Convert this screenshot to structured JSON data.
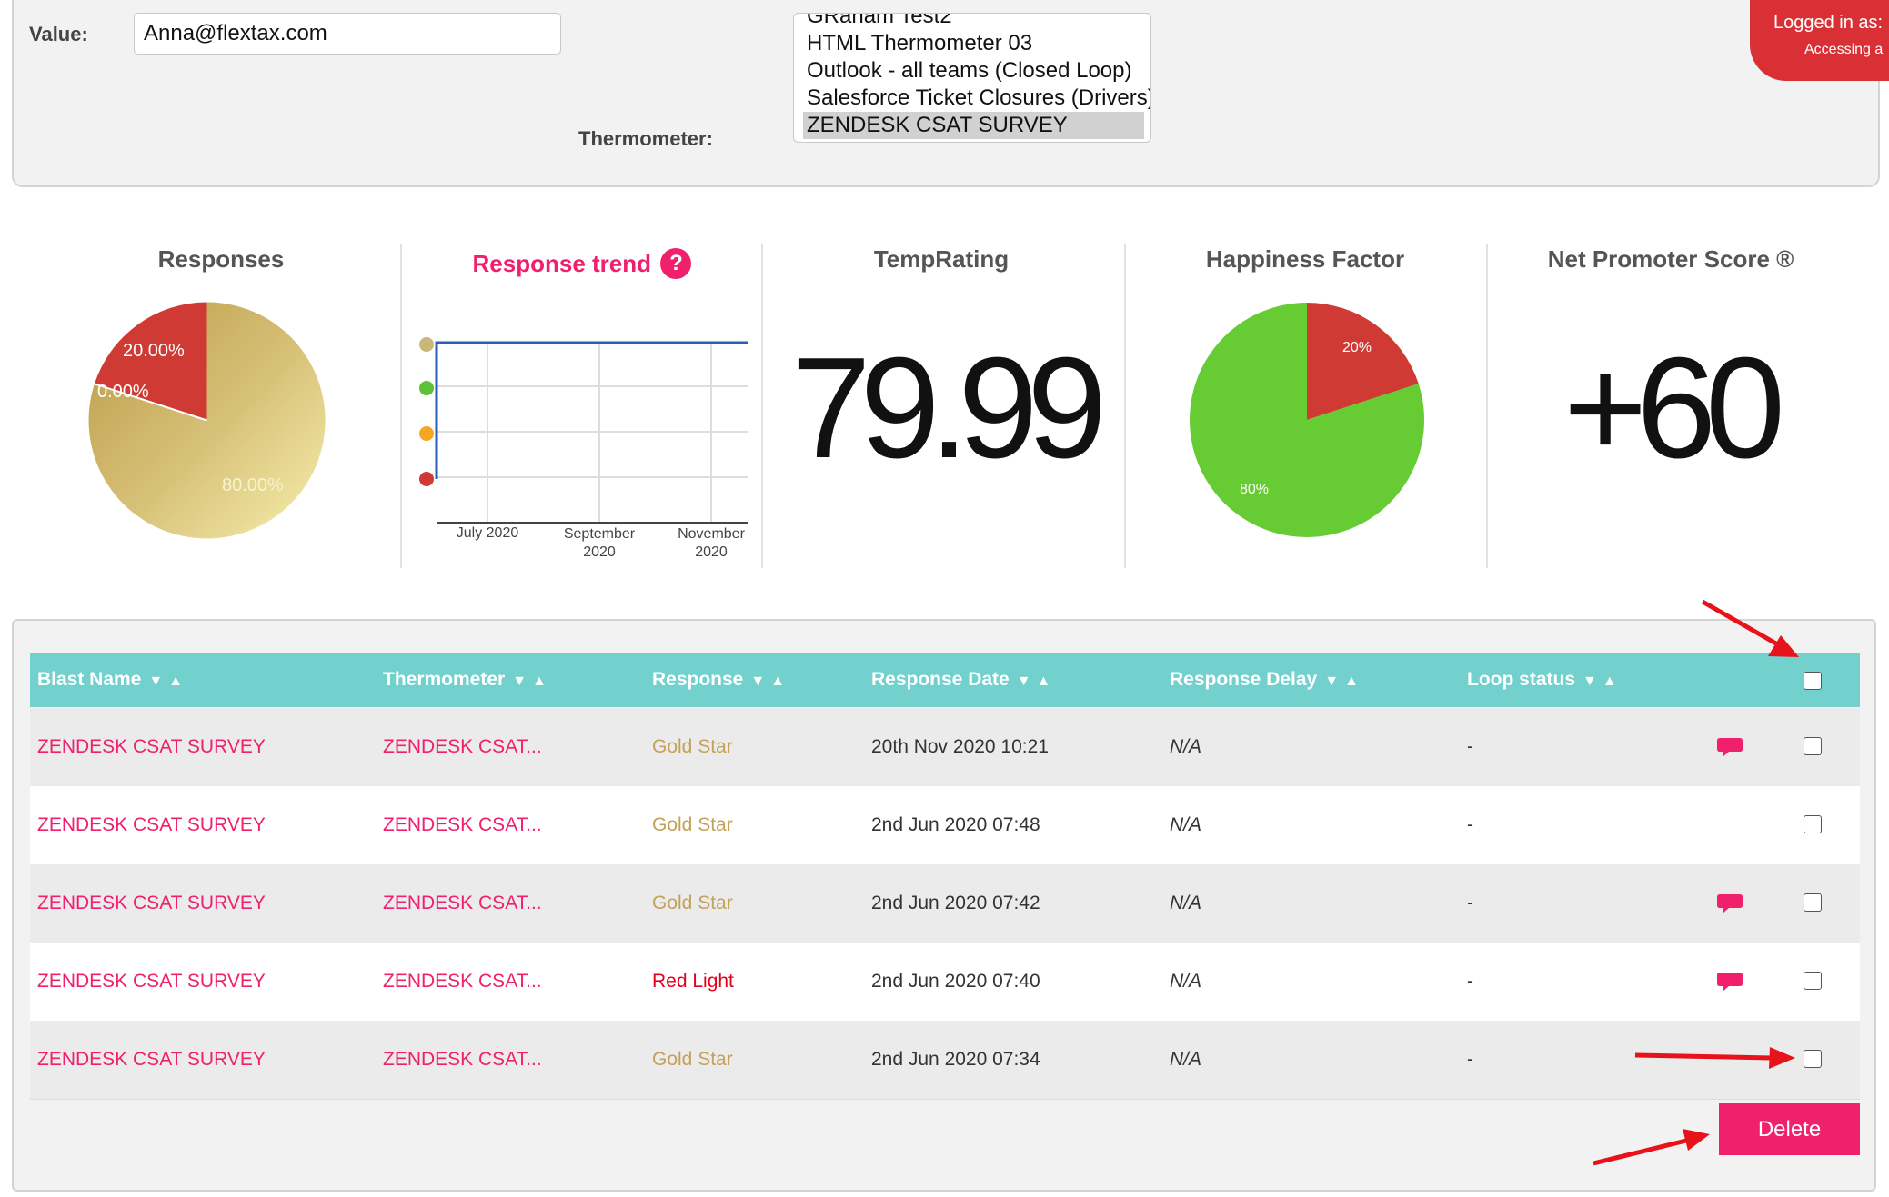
{
  "filters": {
    "value_label": "Value:",
    "value_input": "Anna@flextax.com",
    "thermometer_label": "Thermometer:",
    "thermometer_options": [
      {
        "label": "GRaham Test2",
        "selected": false
      },
      {
        "label": "HTML Thermometer 03",
        "selected": false
      },
      {
        "label": "Outlook - all teams (Closed Loop)",
        "selected": false
      },
      {
        "label": "Salesforce Ticket Closures (Drivers)",
        "selected": false
      },
      {
        "label": "ZENDESK CSAT SURVEY",
        "selected": true
      }
    ]
  },
  "login_badge": {
    "line1": "Logged in as:",
    "line2": "Accessing a"
  },
  "stats": {
    "responses": {
      "title": "Responses",
      "labels": [
        "20.00%",
        "0.00%",
        "80.00%"
      ],
      "colors": {
        "red": "#d03a34",
        "gold_light": "#f5eda6",
        "gold_dark": "#b89a45"
      }
    },
    "trend": {
      "title": "Response trend",
      "help_icon": "?",
      "xlabels": [
        [
          "July 2020"
        ],
        [
          "September",
          "2020"
        ],
        [
          "November",
          "2020"
        ]
      ],
      "dot_colors": [
        "#c9b87a",
        "#5bc236",
        "#f5a623",
        "#d03a34"
      ],
      "line_color": "#2b5fb5"
    },
    "temprating": {
      "title": "TempRating",
      "value": "79.99"
    },
    "happiness": {
      "title": "Happiness Factor",
      "labels": [
        "20%",
        "80%"
      ],
      "colors": {
        "red": "#d03a34",
        "green": "#67cc33"
      }
    },
    "nps": {
      "title": "Net Promoter Score ®",
      "value": "+60"
    }
  },
  "table": {
    "columns": [
      {
        "label": "Blast Name",
        "sort": "▼▲"
      },
      {
        "label": "Thermometer",
        "sort": "▼▲"
      },
      {
        "label": "Response",
        "sort": "▼▲"
      },
      {
        "label": "Response Date",
        "sort": "▼▲"
      },
      {
        "label": "Response Delay",
        "sort": "▼▲"
      },
      {
        "label": "Loop status",
        "sort": "▼▲"
      }
    ],
    "rows": [
      {
        "blast": "ZENDESK CSAT SURVEY",
        "thermometer": "ZENDESK CSAT...",
        "response": "Gold Star",
        "response_type": "gold",
        "date": "20th Nov 2020 10:21",
        "delay": "N/A",
        "loop": "-",
        "comment": true
      },
      {
        "blast": "ZENDESK CSAT SURVEY",
        "thermometer": "ZENDESK CSAT...",
        "response": "Gold Star",
        "response_type": "gold",
        "date": "2nd Jun 2020 07:48",
        "delay": "N/A",
        "loop": "-",
        "comment": false
      },
      {
        "blast": "ZENDESK CSAT SURVEY",
        "thermometer": "ZENDESK CSAT...",
        "response": "Gold Star",
        "response_type": "gold",
        "date": "2nd Jun 2020 07:42",
        "delay": "N/A",
        "loop": "-",
        "comment": true
      },
      {
        "blast": "ZENDESK CSAT SURVEY",
        "thermometer": "ZENDESK CSAT...",
        "response": "Red Light",
        "response_type": "red",
        "date": "2nd Jun 2020 07:40",
        "delay": "N/A",
        "loop": "-",
        "comment": true
      },
      {
        "blast": "ZENDESK CSAT SURVEY",
        "thermometer": "ZENDESK CSAT...",
        "response": "Gold Star",
        "response_type": "gold",
        "date": "2nd Jun 2020 07:34",
        "delay": "N/A",
        "loop": "-",
        "comment": false
      }
    ],
    "delete_label": "Delete"
  },
  "colors": {
    "accent_pink": "#f0206c",
    "header_teal": "#72d1cc",
    "annotation_arrow": "#e8131a"
  }
}
